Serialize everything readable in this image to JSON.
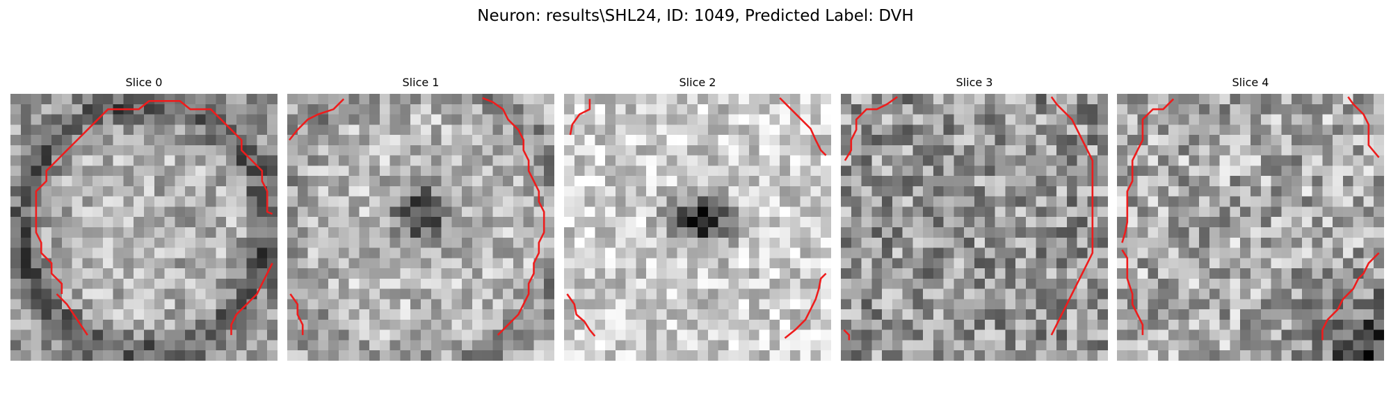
{
  "figure": {
    "title": "Neuron: results\\SHL24, ID: 1049, Predicted Label: DVH"
  },
  "slices": [
    {
      "title": "Slice 0",
      "pattern": "ring-dark",
      "seed": 11
    },
    {
      "title": "Slice 1",
      "pattern": "blob-dark-center",
      "seed": 23
    },
    {
      "title": "Slice 2",
      "pattern": "blob-dark-center-strong",
      "seed": 37
    },
    {
      "title": "Slice 3",
      "pattern": "noise",
      "seed": 41
    },
    {
      "title": "Slice 4",
      "pattern": "noise-dark-corner",
      "seed": 53
    }
  ],
  "colors": {
    "contour": "#ee1c1c",
    "background": "#ffffff"
  }
}
